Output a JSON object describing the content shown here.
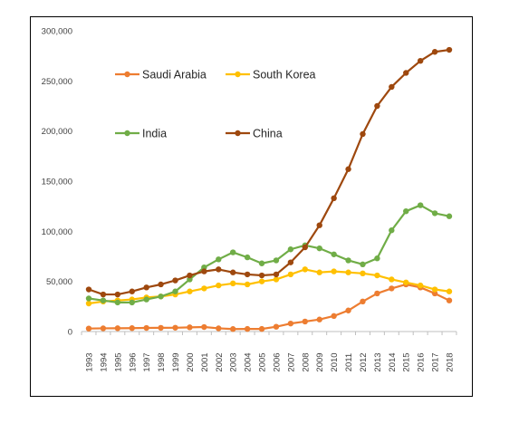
{
  "chart_data": {
    "type": "line",
    "title": "",
    "xlabel": "",
    "ylabel": "",
    "x": [
      "1993",
      "1994",
      "1995",
      "1996",
      "1997",
      "1998",
      "1999",
      "2000",
      "2001",
      "2002",
      "2003",
      "2004",
      "2005",
      "2006",
      "2007",
      "2008",
      "2009",
      "2010",
      "2011",
      "2012",
      "2013",
      "2014",
      "2015",
      "2016",
      "2017",
      "2018"
    ],
    "ylim": [
      0,
      300000
    ],
    "y_ticks": [
      "0",
      "50,000",
      "100,000",
      "150,000",
      "200,000",
      "250,000",
      "300,000"
    ],
    "grid": false,
    "legend": "upper-left, inside plot area, 2 columns",
    "series": [
      {
        "name": "Saudi Arabia",
        "color": "#ED7D31",
        "values": [
          3000,
          3200,
          3300,
          3400,
          3600,
          3700,
          3800,
          4200,
          4500,
          3200,
          2500,
          2600,
          2600,
          4800,
          8000,
          10000,
          12000,
          15500,
          21000,
          30000,
          38000,
          43000,
          47000,
          44000,
          38000,
          31000
        ]
      },
      {
        "name": "South Korea",
        "color": "#FFC000",
        "values": [
          28000,
          30000,
          31000,
          32000,
          34000,
          35000,
          37000,
          40000,
          43000,
          46000,
          48000,
          47000,
          50000,
          52000,
          57000,
          62000,
          59000,
          60000,
          59000,
          58000,
          56000,
          52000,
          49000,
          46000,
          42000,
          40000
        ]
      },
      {
        "name": "India",
        "color": "#70AD47",
        "values": [
          33000,
          31000,
          29000,
          29000,
          32000,
          35000,
          40000,
          52000,
          64000,
          72000,
          79000,
          74000,
          68000,
          71000,
          82000,
          86000,
          83000,
          77000,
          71000,
          67000,
          73000,
          101000,
          120000,
          126000,
          118000,
          115000
        ]
      },
      {
        "name": "China",
        "color": "#9E480E",
        "values": [
          42000,
          37000,
          37000,
          40000,
          44000,
          47000,
          51000,
          56000,
          60000,
          62000,
          59000,
          57000,
          56000,
          57000,
          69000,
          84000,
          106000,
          133000,
          162000,
          197000,
          225000,
          244000,
          258000,
          270000,
          279000,
          281000
        ]
      }
    ]
  }
}
